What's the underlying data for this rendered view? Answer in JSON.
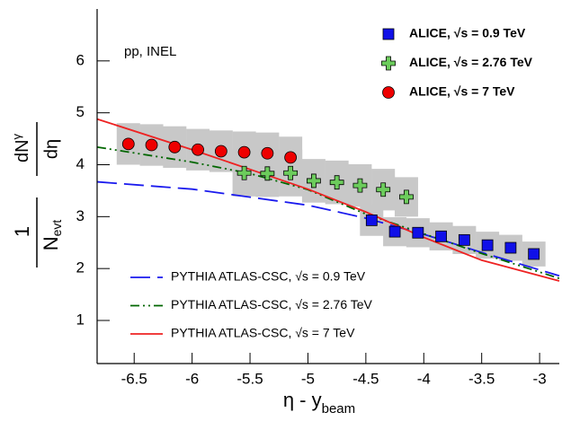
{
  "chart_data": {
    "type": "scatter",
    "annotation": "pp, INEL",
    "ylabel": {
      "left_num": "1",
      "left_den": "N",
      "left_den_sub": "evt",
      "right_num": "dN",
      "right_num_sub": "γ",
      "right_den": "dη"
    },
    "xlabel": {
      "main": "η - y",
      "sub": "beam"
    },
    "xlim": [
      -6.82,
      -2.83
    ],
    "ylim": [
      0.17,
      7.0
    ],
    "xticks": [
      -6.5,
      -6,
      -5.5,
      -5,
      -4.5,
      -4,
      -3.5,
      -3
    ],
    "yticks": [
      1,
      2,
      3,
      4,
      5,
      6
    ],
    "series": [
      {
        "name": "ALICE, √s = 0.9 TeV",
        "color": "#1010e8",
        "marker": "square",
        "legend": "top-right",
        "x": [
          -4.45,
          -4.25,
          -4.05,
          -3.85,
          -3.65,
          -3.45,
          -3.25,
          -3.05
        ],
        "values": [
          2.93,
          2.71,
          2.69,
          2.62,
          2.55,
          2.45,
          2.4,
          2.28
        ],
        "errors": [
          0.3,
          0.28,
          0.28,
          0.27,
          0.27,
          0.26,
          0.25,
          0.24
        ]
      },
      {
        "name": "ALICE, √s = 2.76 TeV",
        "color": "#6ccc5c",
        "marker": "cross",
        "legend": "top-right",
        "x": [
          -5.55,
          -5.35,
          -5.15,
          -4.95,
          -4.75,
          -4.55,
          -4.35,
          -4.15
        ],
        "values": [
          3.84,
          3.83,
          3.84,
          3.69,
          3.66,
          3.6,
          3.52,
          3.38
        ],
        "errors": [
          0.45,
          0.45,
          0.45,
          0.42,
          0.42,
          0.41,
          0.4,
          0.38
        ]
      },
      {
        "name": "ALICE, √s = 7 TeV",
        "color": "#ee0000",
        "marker": "circle",
        "legend": "top-right",
        "x": [
          -6.55,
          -6.35,
          -6.15,
          -5.95,
          -5.75,
          -5.55,
          -5.35,
          -5.15
        ],
        "values": [
          4.4,
          4.38,
          4.34,
          4.29,
          4.26,
          4.24,
          4.22,
          4.14
        ],
        "errors": [
          0.4,
          0.4,
          0.4,
          0.4,
          0.4,
          0.4,
          0.4,
          0.4
        ]
      },
      {
        "name": "PYTHIA ATLAS-CSC, √s = 0.9 TeV",
        "color": "#1a1aee",
        "line_style": "dashed",
        "legend": "bottom-left",
        "x": [
          -6.82,
          -6,
          -5,
          -4.5,
          -4,
          -3.5,
          -2.83
        ],
        "values": [
          3.67,
          3.53,
          3.22,
          2.97,
          2.66,
          2.31,
          1.86
        ]
      },
      {
        "name": "PYTHIA ATLAS-CSC, √s = 2.76 TeV",
        "color": "#006600",
        "line_style": "dashdotdot",
        "legend": "bottom-left",
        "x": [
          -6.82,
          -6,
          -5.5,
          -5,
          -4.5,
          -4,
          -3.5,
          -2.83
        ],
        "values": [
          4.34,
          4.05,
          3.83,
          3.52,
          3.05,
          2.67,
          2.29,
          1.81
        ]
      },
      {
        "name": "PYTHIA ATLAS-CSC, √s = 7 TeV",
        "color": "#ee2222",
        "line_style": "solid",
        "legend": "bottom-left",
        "x": [
          -6.82,
          -6,
          -5.5,
          -5,
          -4.5,
          -4,
          -3.5,
          -2.83
        ],
        "values": [
          4.88,
          4.29,
          3.91,
          3.53,
          3.09,
          2.6,
          2.16,
          1.76
        ]
      }
    ]
  }
}
